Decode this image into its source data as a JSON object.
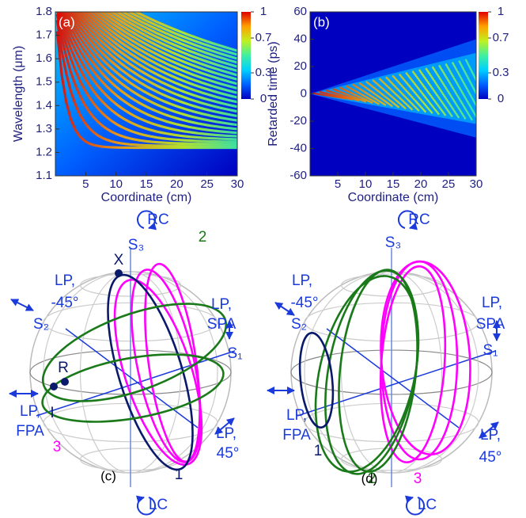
{
  "chart_data": [
    {
      "type": "heatmap",
      "panel_label": "(a)",
      "xlabel": "Coordinate (cm)",
      "ylabel": "Wavelength (μm)",
      "xlim": [
        0,
        30
      ],
      "xticks": [
        5,
        10,
        15,
        20,
        25,
        30
      ],
      "ylim": [
        1.1,
        1.8
      ],
      "yticks": [
        1.1,
        1.2,
        1.3,
        1.4,
        1.5,
        1.6,
        1.7,
        1.8
      ],
      "colorbar_lim": [
        0,
        1
      ],
      "colorbar_ticks": [
        0,
        0.3,
        0.7,
        1
      ],
      "colormap": [
        "#0000c0",
        "#0060ff",
        "#00d0ff",
        "#40f0a0",
        "#c0f020",
        "#ffa000",
        "#e00000"
      ]
    },
    {
      "type": "heatmap",
      "panel_label": "(b)",
      "xlabel": "Coordinate (cm)",
      "ylabel": "Retarded time (ps)",
      "xlim": [
        0,
        30
      ],
      "xticks": [
        5,
        10,
        15,
        20,
        25,
        30
      ],
      "ylim": [
        -60,
        60
      ],
      "yticks": [
        -60,
        -40,
        -20,
        0,
        20,
        40,
        60
      ],
      "colorbar_lim": [
        0,
        1
      ],
      "colorbar_ticks": [
        0,
        0.3,
        0.7,
        1
      ],
      "colormap": [
        "#0000c0",
        "#0060ff",
        "#00d0ff",
        "#40f0a0",
        "#c0f020",
        "#ffa000",
        "#e00000"
      ]
    }
  ],
  "diagrams": [
    {
      "panel_label": "(c)",
      "labels": [
        "RC",
        "S₃",
        "X",
        "LP,",
        "-45°",
        "S₂",
        "2",
        "LP,",
        "SPA",
        "S₁",
        "R",
        "I",
        "LP,",
        "FPA",
        "3",
        "LP,",
        "45°",
        "1",
        "LC"
      ]
    },
    {
      "panel_label": "(d)",
      "labels": [
        "RC",
        "S₃",
        "LP,",
        "-45°",
        "S₂",
        "LP,",
        "SPA",
        "S₁",
        "LP,",
        "FPA",
        "1",
        "LP,",
        "45°",
        "2",
        "3",
        "LC"
      ]
    }
  ]
}
